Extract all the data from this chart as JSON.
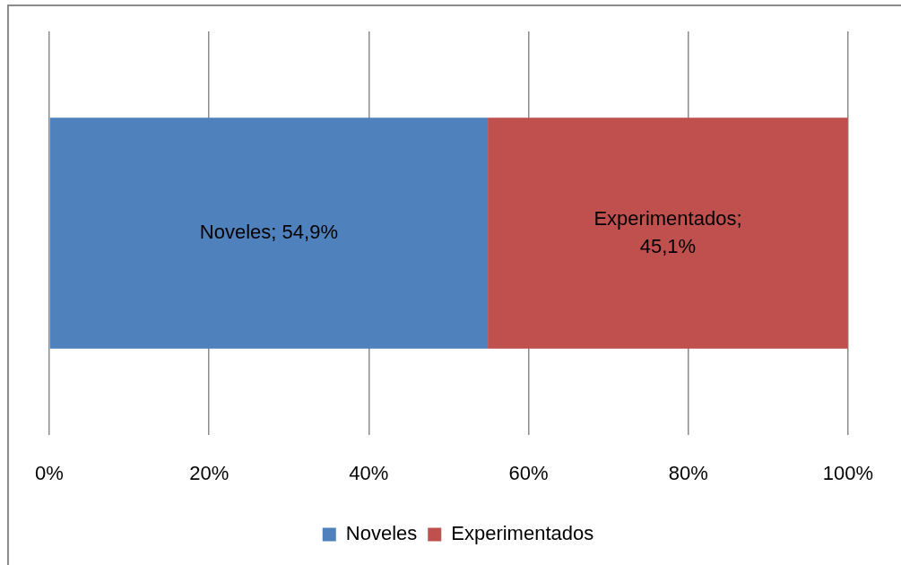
{
  "chart_data": {
    "type": "bar",
    "orientation": "horizontal",
    "stacked": true,
    "categories": [
      null
    ],
    "series": [
      {
        "name": "Noveles",
        "color": "#4f81bd",
        "values": [
          54.9
        ],
        "value_labels": [
          "Noveles; 54,9%"
        ]
      },
      {
        "name": "Experimentados",
        "color": "#c0504d",
        "values": [
          45.1
        ],
        "value_labels": [
          "Experimentados; 45,1%"
        ]
      }
    ],
    "xlim": [
      0,
      100
    ],
    "xticks": [
      {
        "value": 0,
        "label": "0%"
      },
      {
        "value": 20,
        "label": "20%"
      },
      {
        "value": 40,
        "label": "40%"
      },
      {
        "value": 60,
        "label": "60%"
      },
      {
        "value": 80,
        "label": "80%"
      },
      {
        "value": 100,
        "label": "100%"
      }
    ],
    "grid": "x",
    "legend": "bottom"
  }
}
